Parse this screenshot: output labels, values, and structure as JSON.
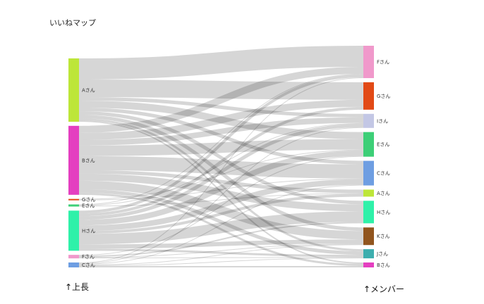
{
  "title": "いいねマップ",
  "left_axis_label": "↑上長",
  "right_axis_label": "↑メンバー",
  "chart_data": {
    "type": "sankey",
    "sources": [
      {
        "id": "A",
        "label": "Aさん",
        "color": "#b9e52e"
      },
      {
        "id": "B",
        "label": "Bさん",
        "color": "#e335bd"
      },
      {
        "id": "G",
        "label": "Gさん",
        "color": "#e0400a"
      },
      {
        "id": "E",
        "label": "Eさん",
        "color": "#33cc70"
      },
      {
        "id": "H",
        "label": "Hさん",
        "color": "#24f0a4"
      },
      {
        "id": "F",
        "label": "Fさん",
        "color": "#ef94c8"
      },
      {
        "id": "C",
        "label": "Cさん",
        "color": "#6699e0"
      }
    ],
    "targets": [
      {
        "id": "F",
        "label": "Fさん",
        "color": "#ef94c8"
      },
      {
        "id": "G",
        "label": "Gさん",
        "color": "#e0400a"
      },
      {
        "id": "I",
        "label": "Iさん",
        "color": "#c0c4e4"
      },
      {
        "id": "E",
        "label": "Eさん",
        "color": "#33cc70"
      },
      {
        "id": "C",
        "label": "Cさん",
        "color": "#6699e0"
      },
      {
        "id": "A",
        "label": "Aさん",
        "color": "#b9e52e"
      },
      {
        "id": "H",
        "label": "Hさん",
        "color": "#24f0a4"
      },
      {
        "id": "K",
        "label": "Kさん",
        "color": "#8b4c12"
      },
      {
        "id": "J",
        "label": "Jさん",
        "color": "#33aaaa"
      },
      {
        "id": "B",
        "label": "Bさん",
        "color": "#e335bd"
      }
    ],
    "links": [
      [
        "A",
        "F",
        30
      ],
      [
        "A",
        "G",
        25
      ],
      [
        "A",
        "I",
        5
      ],
      [
        "A",
        "E",
        10
      ],
      [
        "A",
        "C",
        5
      ],
      [
        "A",
        "H",
        5
      ],
      [
        "A",
        "K",
        5
      ],
      [
        "A",
        "J",
        3
      ],
      [
        "A",
        "B",
        2
      ],
      [
        "B",
        "F",
        10
      ],
      [
        "B",
        "G",
        10
      ],
      [
        "B",
        "I",
        8
      ],
      [
        "B",
        "E",
        15
      ],
      [
        "B",
        "C",
        20
      ],
      [
        "B",
        "A",
        5
      ],
      [
        "B",
        "H",
        10
      ],
      [
        "B",
        "K",
        12
      ],
      [
        "B",
        "J",
        5
      ],
      [
        "B",
        "B",
        3
      ],
      [
        "G",
        "E",
        1
      ],
      [
        "G",
        "C",
        1
      ],
      [
        "E",
        "F",
        1
      ],
      [
        "E",
        "I",
        1
      ],
      [
        "E",
        "A",
        1
      ],
      [
        "H",
        "F",
        4
      ],
      [
        "H",
        "G",
        4
      ],
      [
        "H",
        "I",
        5
      ],
      [
        "H",
        "E",
        8
      ],
      [
        "H",
        "C",
        8
      ],
      [
        "H",
        "A",
        4
      ],
      [
        "H",
        "H",
        15
      ],
      [
        "H",
        "K",
        6
      ],
      [
        "H",
        "J",
        3
      ],
      [
        "F",
        "E",
        1
      ],
      [
        "F",
        "H",
        2
      ],
      [
        "F",
        "K",
        1
      ],
      [
        "F",
        "J",
        1
      ],
      [
        "C",
        "F",
        1
      ],
      [
        "C",
        "C",
        1
      ],
      [
        "C",
        "I",
        1
      ],
      [
        "C",
        "K",
        1
      ],
      [
        "C",
        "J",
        1
      ],
      [
        "C",
        "B",
        2
      ]
    ],
    "link_color": "#000000"
  }
}
